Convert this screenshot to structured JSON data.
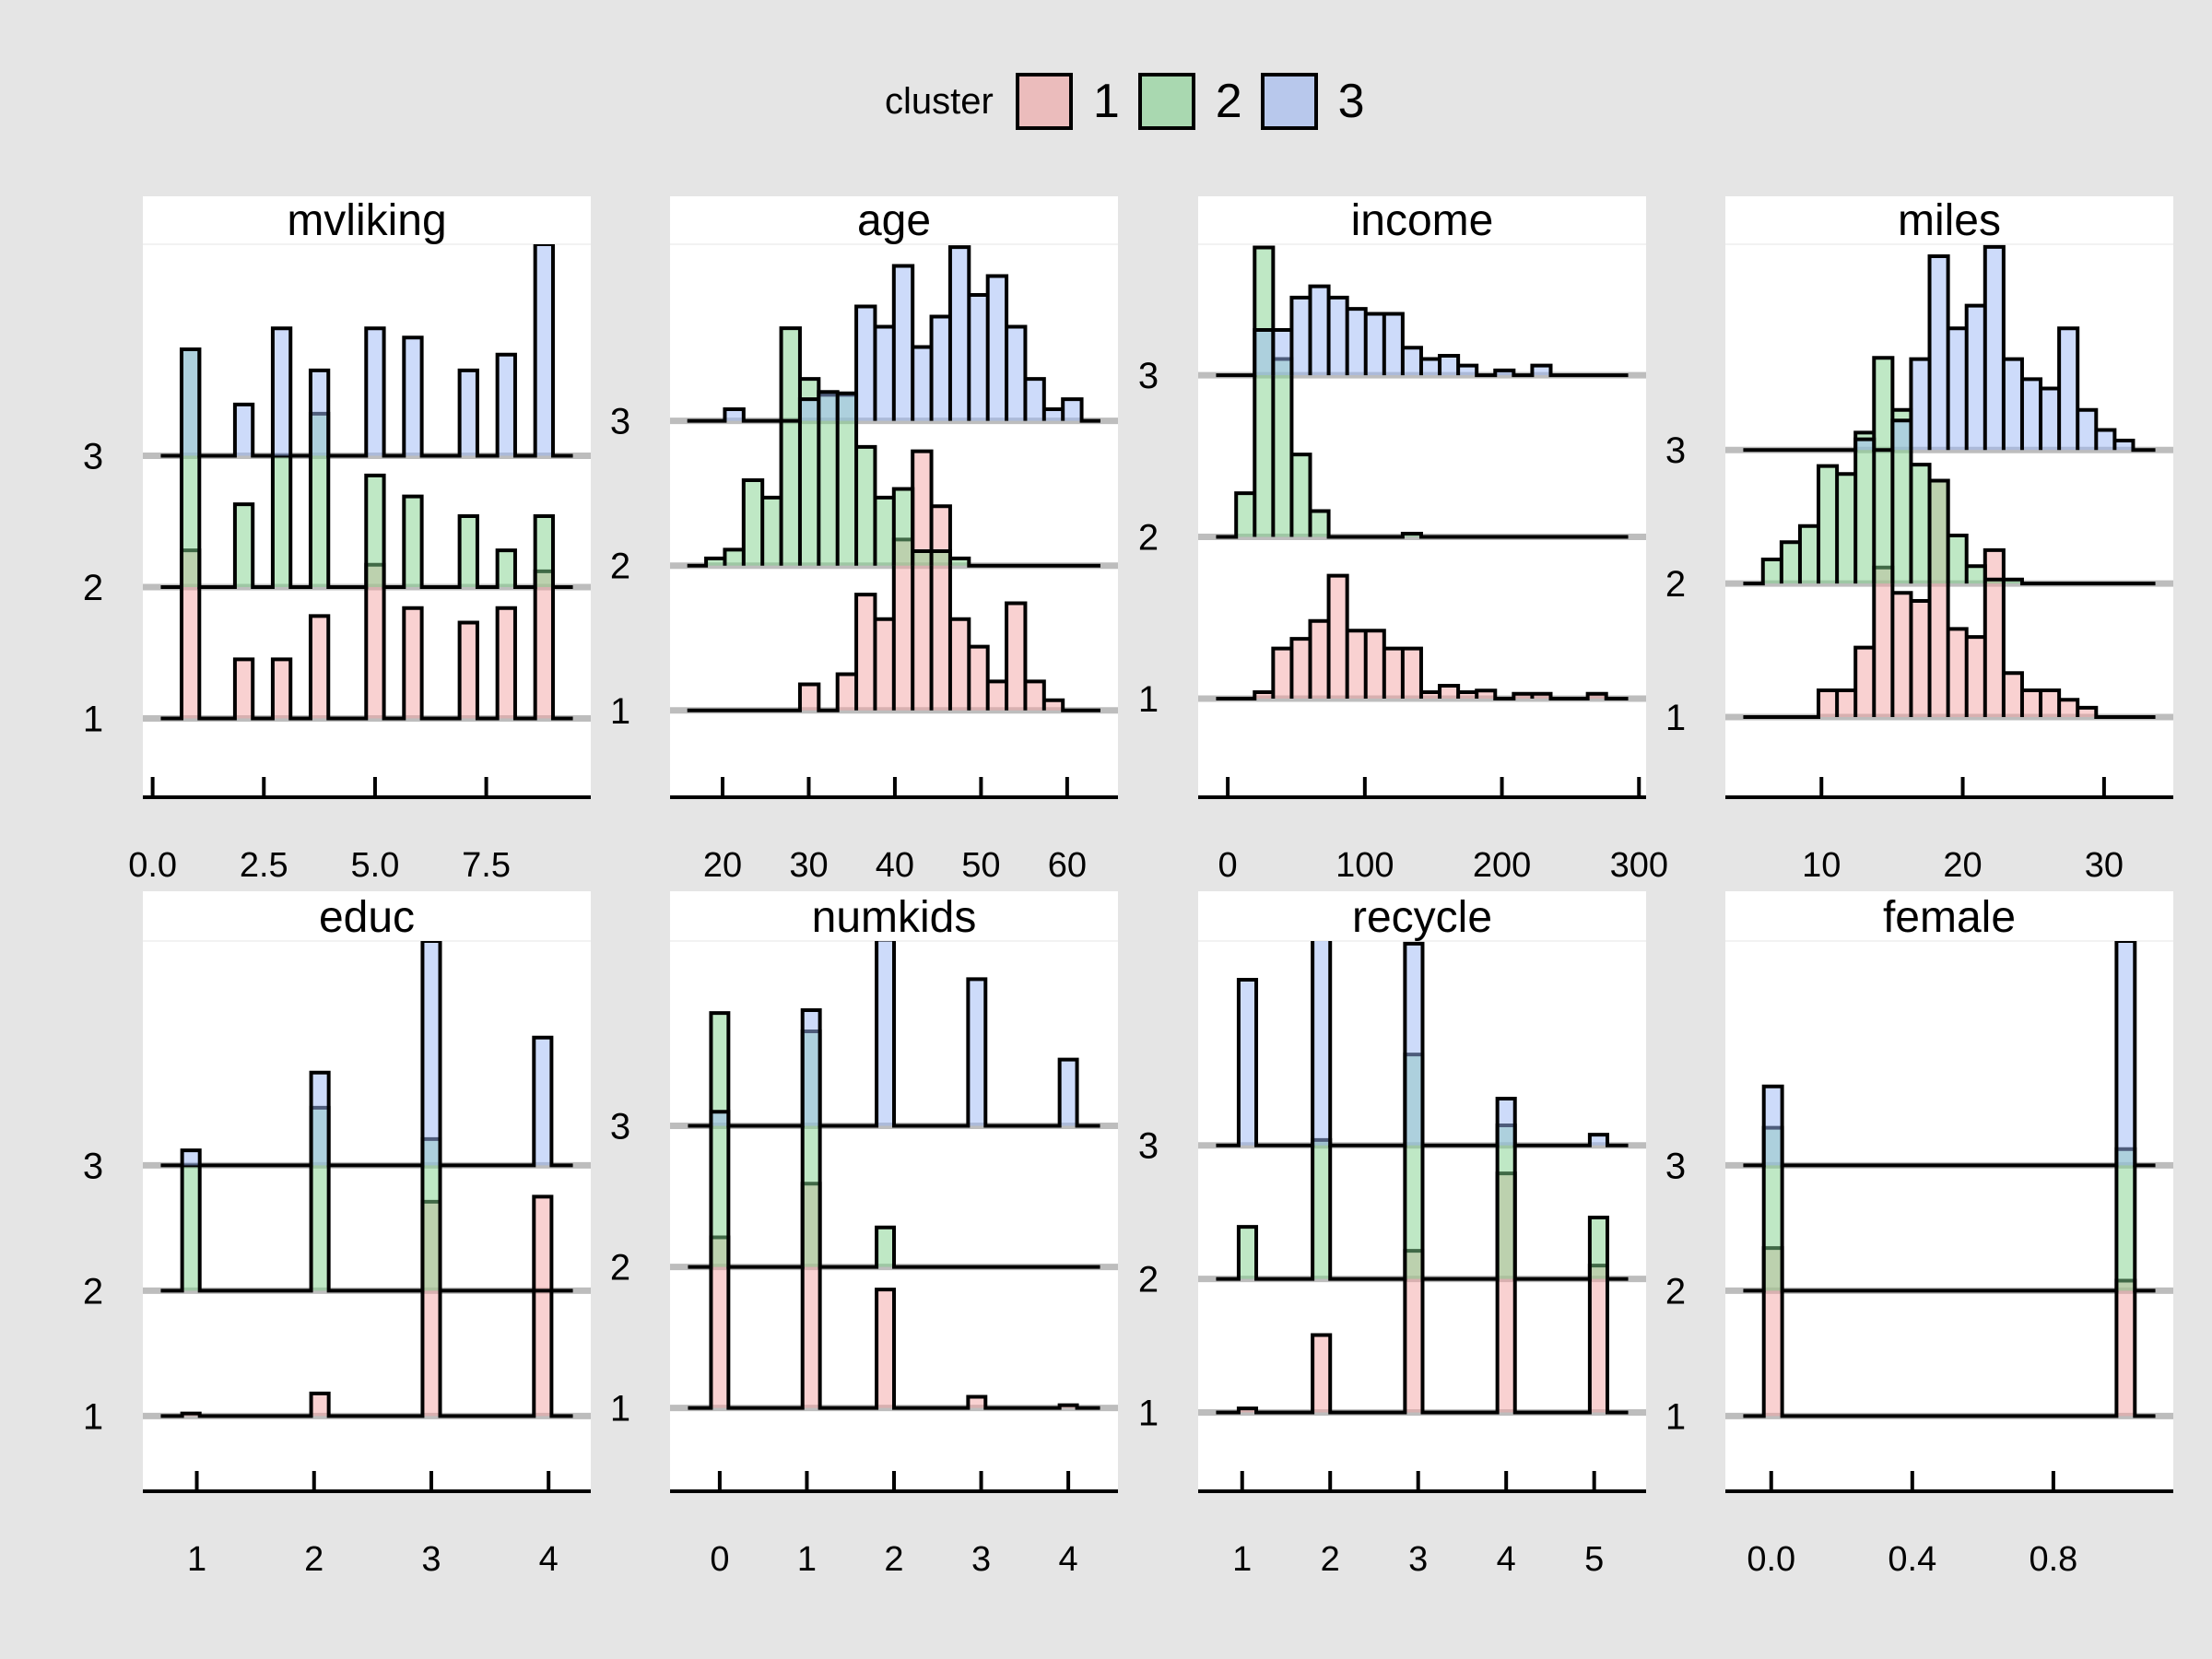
{
  "legend": {
    "title": "cluster",
    "items": [
      {
        "label": "1",
        "color": "#f4a3a3"
      },
      {
        "label": "2",
        "color": "#7fd18b"
      },
      {
        "label": "3",
        "color": "#9bb7f5"
      }
    ]
  },
  "colors": {
    "background": "#e5e5e5",
    "panel": "#ffffff",
    "baseline": "#bdbdbd",
    "outline": "#000000",
    "legend_swatches": [
      "#ebbcbc",
      "#a9d8b0",
      "#b8c8ec"
    ]
  },
  "chart_data": {
    "type": "histogram-ridgeline",
    "layout": "2 rows x 4 columns",
    "legend_placement": "top-center",
    "series_names": [
      "1",
      "2",
      "3"
    ],
    "y_tick_labels": [
      "1",
      "2",
      "3"
    ],
    "panels": [
      {
        "title": "mvliking",
        "kind": "bars",
        "xlim": [
          -0.22,
          9.85
        ],
        "ylim": [
          0.4,
          4.61
        ],
        "xticks": [
          0.0,
          2.5,
          5.0,
          7.5
        ],
        "xtick_labels": [
          "0.0",
          "2.5",
          "5.0",
          "7.5"
        ],
        "centers": [
          0.85,
          2.05,
          2.9,
          3.75,
          5.0,
          5.85,
          7.1,
          7.95,
          8.8
        ],
        "half_width": 0.2,
        "series": [
          {
            "name": "1",
            "values": [
              1.28,
              0.45,
              0.45,
              0.78,
              1.17,
              0.84,
              0.73,
              0.84,
              1.12
            ]
          },
          {
            "name": "2",
            "values": [
              1.81,
              0.63,
              1.0,
              1.32,
              0.85,
              0.69,
              0.54,
              0.28,
              0.54
            ]
          },
          {
            "name": "3",
            "values": [
              0.81,
              0.39,
              0.97,
              0.65,
              0.97,
              0.9,
              0.65,
              0.77,
              1.61
            ]
          }
        ]
      },
      {
        "title": "age",
        "kind": "hist",
        "xlim": [
          13.9,
          65.9
        ],
        "ylim": [
          0.4,
          4.22
        ],
        "xticks": [
          20,
          30,
          40,
          50,
          60
        ],
        "xtick_labels": [
          "20",
          "30",
          "40",
          "50",
          "60"
        ],
        "bin_start": 15.9,
        "bin_width": 2.18,
        "series": [
          {
            "name": "1",
            "values": [
              0,
              0,
              0,
              0,
              0,
              0,
              0.18,
              0,
              0.25,
              0.8,
              0.63,
              1.18,
              1.79,
              1.41,
              0.63,
              0.44,
              0.2,
              0.74,
              0.2,
              0.07,
              0,
              0
            ]
          },
          {
            "name": "2",
            "values": [
              0,
              0.05,
              0.11,
              0.59,
              0.47,
              1.64,
              1.29,
              1.18,
              1.18,
              0.82,
              0.47,
              0.53,
              0.1,
              0.1,
              0.05,
              0,
              0,
              0,
              0,
              0,
              0,
              0
            ]
          },
          {
            "name": "3",
            "values": [
              0,
              0,
              0.08,
              0,
              0,
              0,
              0.15,
              0.2,
              0.19,
              0.79,
              0.65,
              1.07,
              0.51,
              0.72,
              1.2,
              0.87,
              1.0,
              0.65,
              0.29,
              0.08,
              0.15,
              0
            ]
          }
        ]
      },
      {
        "title": "income",
        "kind": "hist",
        "xlim": [
          -21.6,
          305.2
        ],
        "ylim": [
          0.39,
          3.81
        ],
        "xticks": [
          0,
          100,
          200,
          300
        ],
        "xtick_labels": [
          "0",
          "100",
          "200",
          "300"
        ],
        "bin_start": -7.4,
        "bin_width": 13.5,
        "series": [
          {
            "name": "1",
            "values": [
              0,
              0,
              0.04,
              0.31,
              0.37,
              0.48,
              0.76,
              0.42,
              0.42,
              0.31,
              0.31,
              0.04,
              0.08,
              0.04,
              0.05,
              0,
              0.03,
              0.03,
              0,
              0,
              0.03,
              0
            ]
          },
          {
            "name": "2",
            "values": [
              0,
              0.27,
              1.79,
              1.1,
              0.51,
              0.16,
              0,
              0,
              0,
              0,
              0.02,
              0,
              0,
              0,
              0,
              0,
              0,
              0,
              0,
              0,
              0,
              0
            ]
          },
          {
            "name": "3",
            "values": [
              0,
              0,
              0.28,
              0.28,
              0.48,
              0.55,
              0.48,
              0.41,
              0.38,
              0.38,
              0.17,
              0.1,
              0.12,
              0.06,
              0,
              0.03,
              0,
              0.06,
              0,
              0,
              0,
              0
            ]
          }
        ]
      },
      {
        "title": "miles",
        "kind": "hist",
        "xlim": [
          3.2,
          34.9
        ],
        "ylim": [
          0.4,
          4.54
        ],
        "xticks": [
          10,
          20,
          30
        ],
        "xtick_labels": [
          "10",
          "20",
          "30"
        ],
        "bin_start": 4.55,
        "bin_width": 1.31,
        "series": [
          {
            "name": "1",
            "values": [
              0,
              0,
              0,
              0,
              0.2,
              0.2,
              0.52,
              1.12,
              0.93,
              0.87,
              1.77,
              0.66,
              0.6,
              1.25,
              0.33,
              0.2,
              0.2,
              0.13,
              0.07,
              0,
              0,
              0
            ]
          },
          {
            "name": "2",
            "values": [
              0,
              0.18,
              0.31,
              0.43,
              0.88,
              0.82,
              1.13,
              1.69,
              1.3,
              0.89,
              0.77,
              0.36,
              0.13,
              0.03,
              0.03,
              0,
              0,
              0,
              0,
              0,
              0,
              0
            ]
          },
          {
            "name": "3",
            "values": [
              0,
              0,
              0,
              0,
              0,
              0,
              0.08,
              0,
              0.22,
              0.68,
              1.45,
              0.91,
              1.08,
              1.52,
              0.68,
              0.53,
              0.46,
              0.91,
              0.3,
              0.15,
              0.07,
              0
            ]
          }
        ]
      },
      {
        "title": "educ",
        "kind": "bars",
        "xlim": [
          0.54,
          4.36
        ],
        "ylim": [
          0.4,
          4.79
        ],
        "xticks": [
          1,
          2,
          3,
          4
        ],
        "xtick_labels": [
          "1",
          "2",
          "3",
          "4"
        ],
        "centers": [
          0.95,
          2.05,
          3.0,
          3.95
        ],
        "half_width": 0.075,
        "series": [
          {
            "name": "1",
            "values": [
              0.02,
              0.18,
              1.71,
              1.75
            ]
          },
          {
            "name": "2",
            "values": [
              1.0,
              1.46,
              1.21,
              0
            ]
          },
          {
            "name": "3",
            "values": [
              0.12,
              0.74,
              1.79,
              1.02
            ]
          }
        ]
      },
      {
        "title": "numkids",
        "kind": "bars",
        "xlim": [
          -0.57,
          4.57
        ],
        "ylim": [
          0.41,
          4.31
        ],
        "xticks": [
          0,
          1,
          2,
          3,
          4
        ],
        "xtick_labels": [
          "0",
          "1",
          "2",
          "3",
          "4"
        ],
        "centers": [
          0.0,
          1.05,
          1.9,
          2.95,
          4.0
        ],
        "half_width": 0.1,
        "series": [
          {
            "name": "1",
            "values": [
              1.21,
              1.59,
              0.84,
              0.08,
              0.02
            ]
          },
          {
            "name": "2",
            "values": [
              1.8,
              1.67,
              0.28,
              0,
              0
            ]
          },
          {
            "name": "3",
            "values": [
              0.1,
              0.82,
              1.32,
              1.04,
              0.47
            ]
          }
        ]
      },
      {
        "title": "recycle",
        "kind": "bars",
        "xlim": [
          0.5,
          5.59
        ],
        "ylim": [
          0.41,
          4.53
        ],
        "xticks": [
          1,
          2,
          3,
          4,
          5
        ],
        "xtick_labels": [
          "1",
          "2",
          "3",
          "4",
          "5"
        ],
        "centers": [
          1.06,
          1.9,
          2.95,
          4.0,
          5.05
        ],
        "half_width": 0.1,
        "series": [
          {
            "name": "1",
            "values": [
              0.03,
              0.58,
              1.21,
              1.79,
              1.1
            ]
          },
          {
            "name": "2",
            "values": [
              0.39,
              1.04,
              1.68,
              1.15,
              0.46
            ]
          },
          {
            "name": "3",
            "values": [
              1.24,
              1.55,
              1.51,
              0.35,
              0.08
            ]
          }
        ]
      },
      {
        "title": "female",
        "kind": "bars",
        "xlim": [
          -0.13,
          1.14
        ],
        "ylim": [
          0.4,
          4.79
        ],
        "xticks": [
          0.0,
          0.4,
          0.8
        ],
        "xtick_labels": [
          "0.0",
          "0.4",
          "0.8"
        ],
        "centers": [
          0.005,
          1.005
        ],
        "half_width": 0.026,
        "series": [
          {
            "name": "1",
            "values": [
              1.34,
              1.08
            ]
          },
          {
            "name": "2",
            "values": [
              1.3,
              1.13
            ]
          },
          {
            "name": "3",
            "values": [
              0.63,
              1.79
            ]
          }
        ]
      }
    ]
  }
}
